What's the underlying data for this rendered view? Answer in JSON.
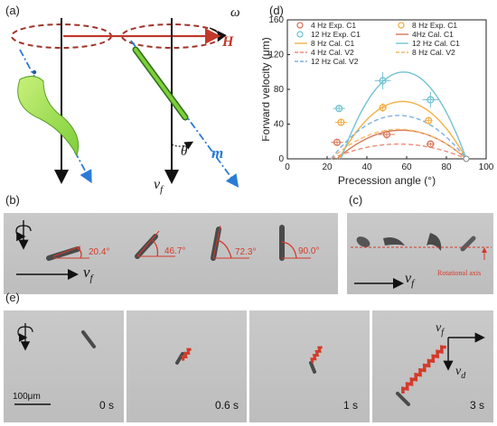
{
  "panel_labels": {
    "a": "(a)",
    "b": "(b)",
    "c": "(c)",
    "d": "(d)",
    "e": "(e)"
  },
  "panel_a": {
    "omega": "ω",
    "field": "H",
    "moment": "m",
    "theta": "θ",
    "vf": "v",
    "vf_sub": "f"
  },
  "panel_b": {
    "angles": [
      "20.4°",
      "46.7°",
      "72.3°",
      "90.0°"
    ],
    "vf": "v",
    "vf_sub": "f"
  },
  "panel_c": {
    "annotation": "Rotational axis",
    "vf": "v",
    "vf_sub": "f"
  },
  "panel_e": {
    "times": [
      "0 s",
      "0.6 s",
      "1 s",
      "3 s"
    ],
    "scale_bar": "100μm",
    "vf": "v",
    "vf_sub": "f",
    "vd": "v",
    "vd_sub": "d"
  },
  "colors": {
    "c4": "#d9785a",
    "c8": "#f2b14a",
    "c12": "#74c3d2",
    "v4": "#f08a78",
    "v8": "#f4b862",
    "v12": "#7fb0e0",
    "field": "#c0392b",
    "moment": "#2b7bd6"
  },
  "chart_data": {
    "type": "scatter",
    "title": "",
    "xlabel": "Precession angle (°)",
    "ylabel": "Forward velocity (μm)",
    "xlim": [
      0,
      100
    ],
    "ylim": [
      0,
      160
    ],
    "xticks": [
      0,
      20,
      40,
      60,
      80,
      100
    ],
    "yticks": [
      0,
      40,
      80,
      120,
      160
    ],
    "grid": false,
    "legend_position": "top",
    "experimental": [
      {
        "name": "4 Hz Exp. C1",
        "color": "#d9785a",
        "points": [
          {
            "x": 25,
            "y": 19,
            "xerr": 3,
            "yerr": 3
          },
          {
            "x": 50,
            "y": 28,
            "xerr": 4,
            "yerr": 5
          },
          {
            "x": 72,
            "y": 17,
            "xerr": 2,
            "yerr": 2
          }
        ]
      },
      {
        "name": "8 Hz Exp. C1",
        "color": "#f2b14a",
        "points": [
          {
            "x": 27,
            "y": 42,
            "xerr": 3,
            "yerr": 4
          },
          {
            "x": 48,
            "y": 59,
            "xerr": 2,
            "yerr": 5
          },
          {
            "x": 71,
            "y": 44,
            "xerr": 2,
            "yerr": 4
          }
        ]
      },
      {
        "name": "12 Hz Exp. C1",
        "color": "#74c3d2",
        "points": [
          {
            "x": 26,
            "y": 58,
            "xerr": 3,
            "yerr": 3
          },
          {
            "x": 48,
            "y": 90,
            "xerr": 4,
            "yerr": 10
          },
          {
            "x": 72,
            "y": 68,
            "xerr": 4,
            "yerr": 9
          }
        ]
      }
    ],
    "calculated": [
      {
        "name": "4Hz Cal. C1",
        "style": "solid",
        "color": "#d9785a",
        "peak_x": 50,
        "peak_y": 33,
        "x_start": 25,
        "x_end": 90
      },
      {
        "name": "8 Hz Cal. C1",
        "style": "solid",
        "color": "#f2b14a",
        "peak_x": 50,
        "peak_y": 66,
        "x_start": 26,
        "x_end": 90
      },
      {
        "name": "12 Hz Cal. C1",
        "style": "solid",
        "color": "#74c3d2",
        "peak_x": 50,
        "peak_y": 100,
        "x_start": 27,
        "x_end": 90
      },
      {
        "name": "4 Hz Cal. V2",
        "style": "dashed",
        "color": "#f08a78",
        "peak_x": 52,
        "peak_y": 17,
        "x_start": 22,
        "x_end": 90
      },
      {
        "name": "8 Hz Cal. V2",
        "style": "dashed",
        "color": "#f4b862",
        "peak_x": 52,
        "peak_y": 34,
        "x_start": 22,
        "x_end": 90
      },
      {
        "name": "12 Hz Cal. V2",
        "style": "dashed",
        "color": "#7fb0e0",
        "peak_x": 52,
        "peak_y": 50,
        "x_start": 22,
        "x_end": 90
      }
    ],
    "legend": [
      {
        "label": "4 Hz Exp. C1",
        "kind": "marker",
        "color": "#d9785a"
      },
      {
        "label": "8 Hz Exp. C1",
        "kind": "marker",
        "color": "#f2b14a"
      },
      {
        "label": "12 Hz Exp. C1",
        "kind": "marker",
        "color": "#74c3d2"
      },
      {
        "label": "4Hz Cal. C1",
        "kind": "solid",
        "color": "#d9785a"
      },
      {
        "label": "8 Hz Cal. C1",
        "kind": "solid",
        "color": "#f2b14a"
      },
      {
        "label": "12 Hz Cal. C1",
        "kind": "solid",
        "color": "#74c3d2"
      },
      {
        "label": "4 Hz Cal. V2",
        "kind": "dashed",
        "color": "#f08a78"
      },
      {
        "label": "8 Hz Cal. V2",
        "kind": "dashed",
        "color": "#f4b862"
      },
      {
        "label": "12 Hz Cal. V2",
        "kind": "dashed",
        "color": "#7fb0e0"
      }
    ]
  }
}
